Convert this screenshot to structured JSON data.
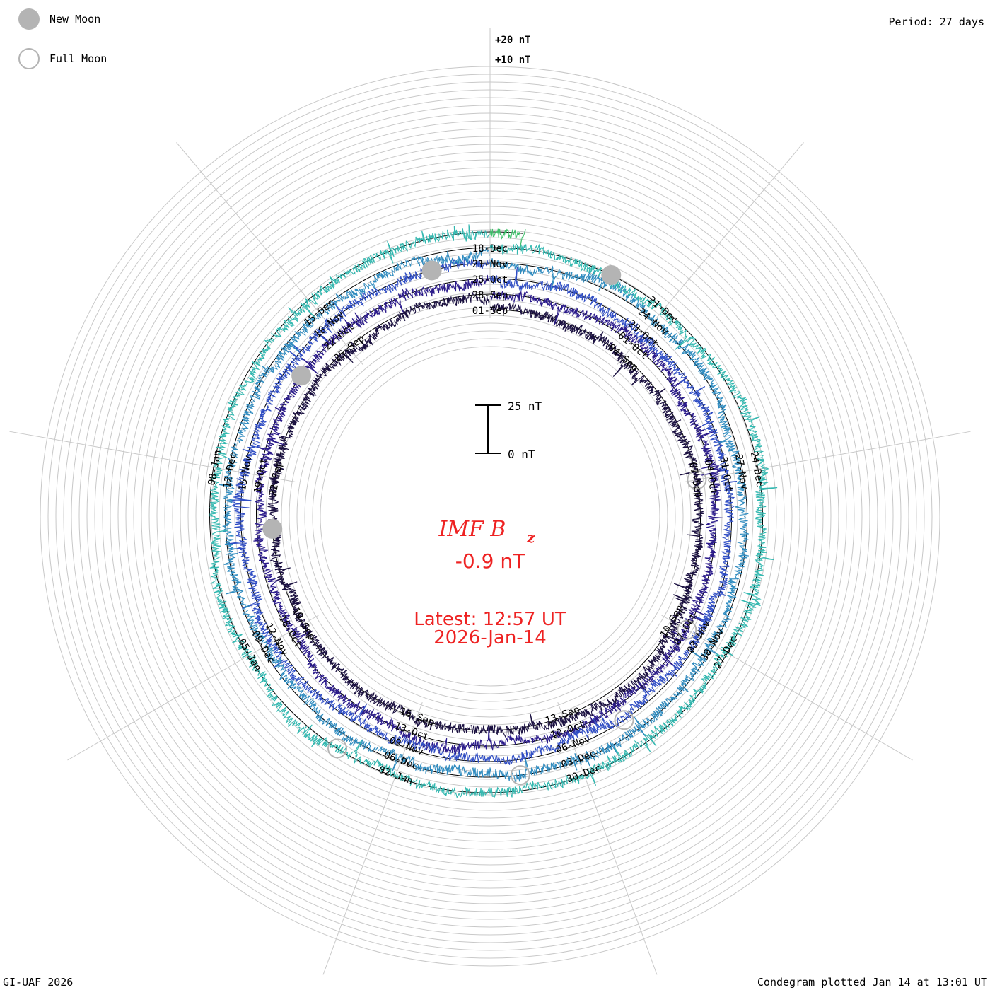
{
  "header": {
    "period": "Period: 27 days"
  },
  "legend": {
    "new_moon": "New Moon",
    "full_moon": "Full Moon"
  },
  "footer": {
    "credit": "GI-UAF 2026",
    "plotted": "Condegram plotted Jan 14 at 13:01 UT"
  },
  "scale": {
    "top": "+20 nT",
    "second": "+10 nT",
    "bar_top": "25 nT",
    "bar_bottom": "0 nT"
  },
  "center": {
    "title_main": "IMF B",
    "title_sub": "z",
    "value": "-0.9 nT",
    "latest": "Latest: 12:57 UT",
    "date": "2026-Jan-14"
  },
  "colors": {
    "new_moon": "#b4b4b4",
    "full_moon": "#b4b4b4",
    "center_text": "#ee2222",
    "grid": "#c8c8c8"
  },
  "chart_data": {
    "type": "condegram-spiral",
    "title": "IMF Bz",
    "period_days": 27,
    "latest_value_nT": -0.9,
    "start_date": "2025-09-01",
    "end_date": "2026-01-14",
    "ring_colors": [
      "#1a1040",
      "#2a1a8a",
      "#2f4dc4",
      "#2f8bbf",
      "#33b8b0",
      "#3fbf6a",
      "#7ec23a",
      "#aeb42a",
      "#c0921a",
      "#c36214",
      "#c22a10"
    ],
    "date_labels": [
      "01-Sep",
      "04-Sep",
      "07-Sep",
      "10-Sep",
      "13-Sep",
      "16-Sep",
      "19-Sep",
      "22-Sep",
      "25-Sep",
      "28-Sep",
      "01-Oct",
      "04-Oct",
      "07-Oct",
      "10-Oct",
      "13-Oct",
      "16-Oct",
      "19-Oct",
      "22-Oct",
      "25-Oct",
      "28-Oct",
      "31-Oct",
      "03-Nov",
      "06-Nov",
      "09-Nov",
      "12-Nov",
      "15-Nov",
      "18-Nov",
      "21-Nov",
      "24-Nov",
      "27-Nov",
      "30-Nov",
      "03-Dec",
      "06-Dec",
      "09-Dec",
      "12-Dec",
      "15-Dec",
      "18-Dec",
      "21-Dec",
      "24-Dec",
      "27-Dec",
      "30-Dec",
      "02-Jan",
      "05-Jan",
      "08-Jan"
    ],
    "new_moons": [
      "2025-09-21",
      "2025-10-21",
      "2025-11-20",
      "2025-12-20"
    ],
    "full_moons": [
      "2025-09-07",
      "2025-10-07",
      "2025-11-05",
      "2025-12-04",
      "2026-01-03"
    ],
    "scale_bar_nT": [
      0,
      25
    ],
    "ring_reference_nT": [
      10,
      20
    ]
  }
}
